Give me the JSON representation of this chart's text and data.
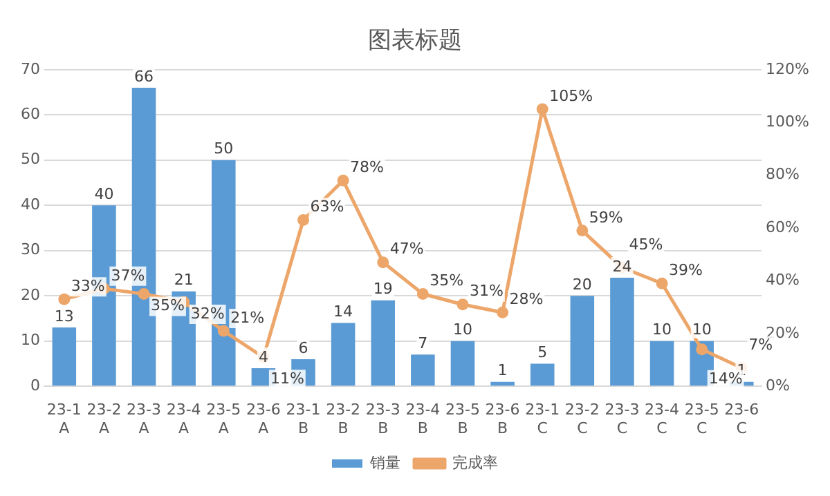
{
  "chart_data": {
    "type": "bar",
    "title": "图表标题",
    "categories": [
      "23-1\nA",
      "23-2\nA",
      "23-3\nA",
      "23-4\nA",
      "23-5\nA",
      "23-6\nA",
      "23-1\nB",
      "23-2\nB",
      "23-3\nB",
      "23-4\nB",
      "23-5\nB",
      "23-6\nB",
      "23-1\nC",
      "23-2\nC",
      "23-3\nC",
      "23-4\nC",
      "23-5\nC",
      "23-6\nC"
    ],
    "series": [
      {
        "name": "销量",
        "color": "#5b9bd5",
        "values": [
          13,
          40,
          66,
          21,
          50,
          4,
          6,
          14,
          19,
          7,
          10,
          1,
          5,
          20,
          24,
          10,
          10,
          1
        ],
        "value_labels": [
          "13",
          "40",
          "66",
          "21",
          "50",
          "4",
          "6",
          "14",
          "19",
          "7",
          "10",
          "1",
          "5",
          "20",
          "24",
          "10",
          "10",
          "1"
        ]
      },
      {
        "name": "完成率",
        "type": "line",
        "axis": "y2",
        "color": "#eda66a",
        "marker": "circle",
        "values": [
          33,
          37,
          35,
          32,
          21,
          11,
          63,
          78,
          47,
          35,
          31,
          28,
          105,
          59,
          45,
          39,
          14,
          7
        ],
        "value_labels": [
          "33%",
          "37%",
          "35%",
          "32%",
          "21%",
          "11%",
          "63%",
          "78%",
          "47%",
          "35%",
          "31%",
          "28%",
          "105%",
          "59%",
          "45%",
          "39%",
          "14%",
          "7%"
        ]
      }
    ],
    "ylim": [
      0,
      70
    ],
    "yticks": [
      0,
      10,
      20,
      30,
      40,
      50,
      60,
      70
    ],
    "y2lim": [
      0,
      120
    ],
    "y2ticks": [
      {
        "value": 0,
        "label": "0%"
      },
      {
        "value": 20,
        "label": "20%"
      },
      {
        "value": 40,
        "label": "40%"
      },
      {
        "value": 60,
        "label": "60%"
      },
      {
        "value": 80,
        "label": "80%"
      },
      {
        "value": 100,
        "label": "100%"
      },
      {
        "value": 120,
        "label": "120%"
      }
    ],
    "grid": "y",
    "legend": "bottom"
  }
}
